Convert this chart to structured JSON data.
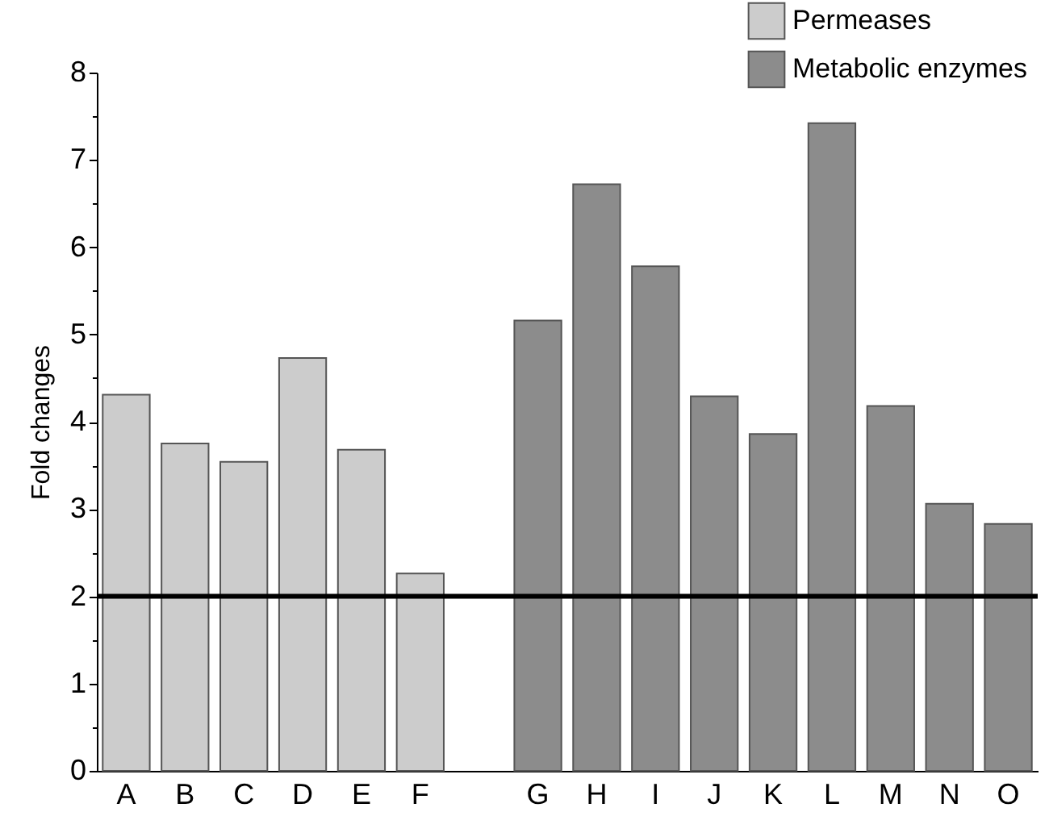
{
  "chart_data": {
    "type": "bar",
    "ylabel": "Fold changes",
    "categories": [
      "A",
      "B",
      "C",
      "D",
      "E",
      "F",
      null,
      "G",
      "H",
      "I",
      "J",
      "K",
      "L",
      "M",
      "N",
      "O"
    ],
    "series": [
      {
        "name": "Permeases",
        "color": "#cccccc",
        "values": [
          4.31,
          3.75,
          3.54,
          4.73,
          3.68,
          2.26,
          null,
          null,
          null,
          null,
          null,
          null,
          null,
          null,
          null,
          null
        ]
      },
      {
        "name": "Metabolic enzymes",
        "color": "#8c8c8c",
        "values": [
          null,
          null,
          null,
          null,
          null,
          null,
          null,
          5.16,
          6.72,
          5.78,
          4.29,
          3.86,
          7.42,
          4.18,
          3.06,
          2.83
        ]
      }
    ],
    "ylim": [
      0,
      8
    ],
    "yticks": [
      0,
      {
        "value": 0.5,
        "label": null
      },
      1,
      {
        "value": 1.5,
        "label": null
      },
      2,
      {
        "value": 2.5,
        "label": null
      },
      3,
      {
        "value": 3.5,
        "label": null
      },
      4,
      {
        "value": 4.5,
        "label": null
      },
      5,
      {
        "value": 5.5,
        "label": null
      },
      6,
      {
        "value": 6.5,
        "label": null
      },
      7,
      {
        "value": 7.5,
        "label": null
      },
      8
    ],
    "ref_lines": [
      {
        "axis": "y",
        "value": 2,
        "color": "#000000",
        "line_style": "solid"
      }
    ],
    "legend": "top right",
    "grid": false
  }
}
